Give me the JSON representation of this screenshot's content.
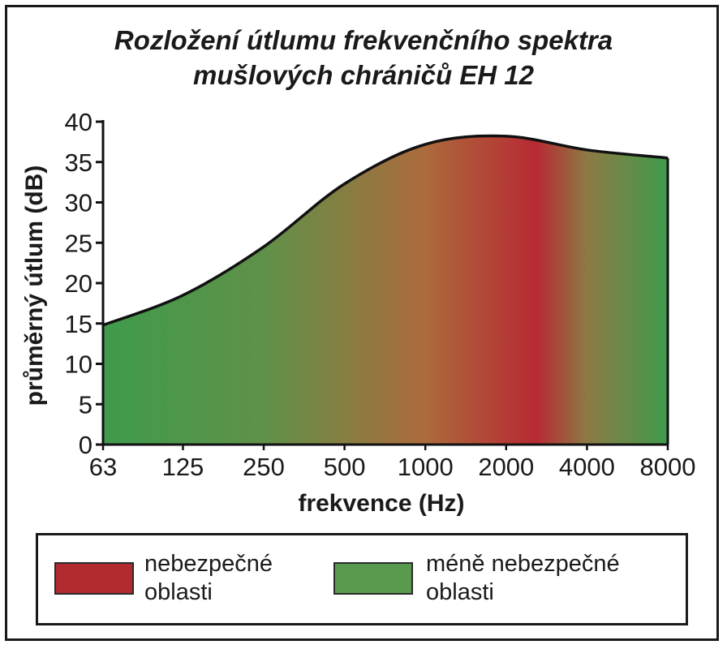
{
  "chart_data": {
    "type": "area",
    "title_lines": [
      "Rozložení útlumu frekvenčního spektra",
      "mušlových chráničů EH 12"
    ],
    "xlabel": "frekvence (Hz)",
    "ylabel": "průměrný útlum (dB)",
    "x_ticks": [
      "63",
      "125",
      "250",
      "500",
      "1000",
      "2000",
      "4000",
      "8000"
    ],
    "y_ticks": [
      "0",
      "5",
      "10",
      "15",
      "20",
      "25",
      "30",
      "35",
      "40"
    ],
    "ylim": [
      0,
      40
    ],
    "x": [
      63,
      125,
      250,
      500,
      1000,
      2000,
      4000,
      8000
    ],
    "values": [
      14.8,
      18.5,
      24.5,
      32.3,
      37.2,
      38.2,
      36.5,
      35.5
    ],
    "gradient_stops": [
      {
        "hz": 63,
        "color": "#3f9b4c"
      },
      {
        "hz": 250,
        "color": "#5f9148"
      },
      {
        "hz": 1000,
        "color": "#ad6a3c"
      },
      {
        "hz": 2600,
        "color": "#b72a33"
      },
      {
        "hz": 4000,
        "color": "#8c7a44"
      },
      {
        "hz": 8000,
        "color": "#3f9b4c"
      }
    ]
  },
  "legend": [
    {
      "line1": "nebezpečné",
      "line2": "oblasti",
      "color": "#b32a30"
    },
    {
      "line1": "méně nebezpečné",
      "line2": "oblasti",
      "color": "#5a9a4e"
    }
  ]
}
